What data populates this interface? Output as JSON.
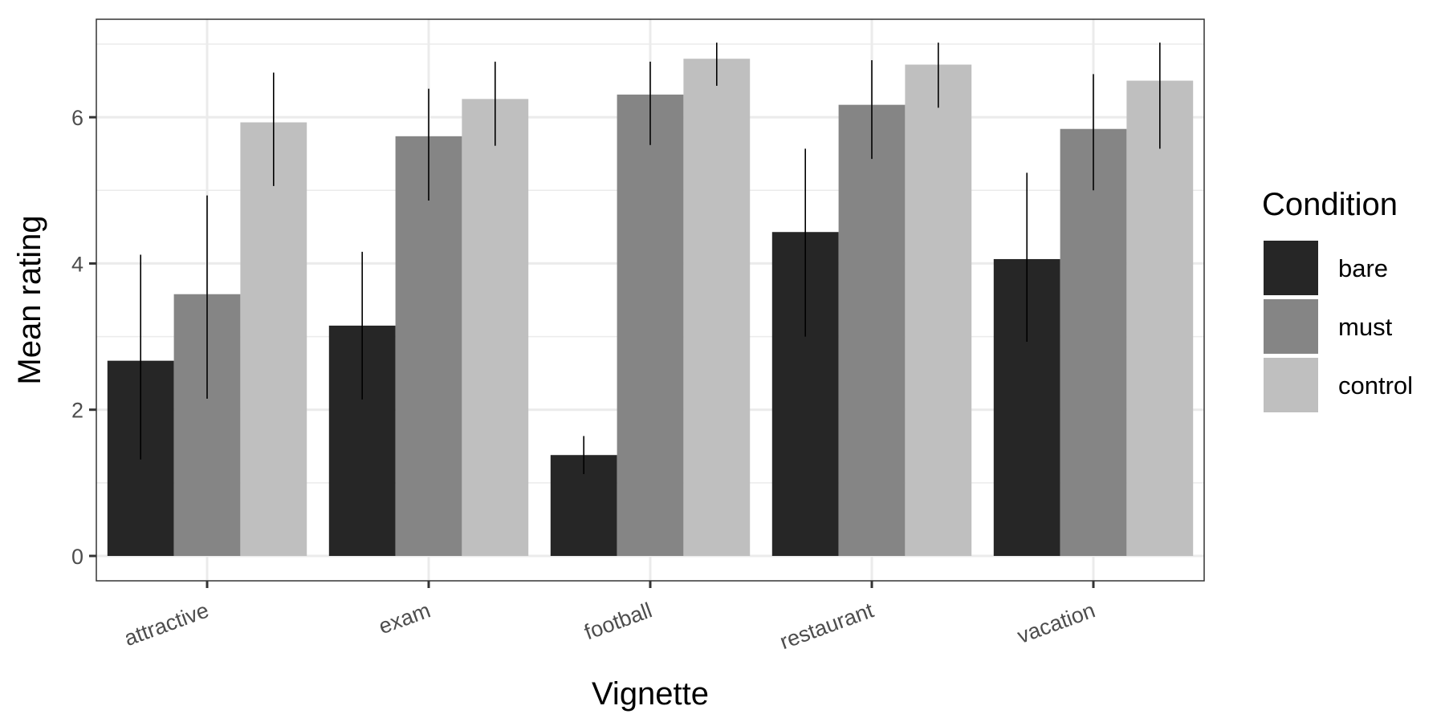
{
  "chart_data": {
    "type": "bar",
    "title": "",
    "xlabel": "Vignette",
    "ylabel": "Mean rating",
    "categories": [
      "attractive",
      "exam",
      "football",
      "restaurant",
      "vacation"
    ],
    "ylim": [
      0,
      7
    ],
    "yticks": [
      0,
      2,
      4,
      6
    ],
    "grid": true,
    "legend": {
      "title": "Condition",
      "placement": "right"
    },
    "series": [
      {
        "name": "bare",
        "color": "#262626",
        "values": [
          2.67,
          3.15,
          1.38,
          4.43,
          4.06
        ],
        "err_low": [
          1.32,
          2.14,
          1.12,
          3.0,
          2.93
        ],
        "err_high": [
          4.12,
          4.16,
          1.64,
          5.57,
          5.24
        ]
      },
      {
        "name": "must",
        "color": "#858585",
        "values": [
          3.58,
          5.74,
          6.31,
          6.17,
          5.84
        ],
        "err_low": [
          2.15,
          4.86,
          5.62,
          5.43,
          5.0
        ],
        "err_high": [
          4.93,
          6.39,
          6.76,
          6.78,
          6.59
        ]
      },
      {
        "name": "control",
        "color": "#bfbfbf",
        "values": [
          5.93,
          6.25,
          6.8,
          6.72,
          6.5
        ],
        "err_low": [
          5.06,
          5.61,
          6.43,
          6.13,
          5.57
        ],
        "err_high": [
          6.61,
          6.76,
          7.02,
          7.02,
          7.02
        ]
      }
    ]
  }
}
